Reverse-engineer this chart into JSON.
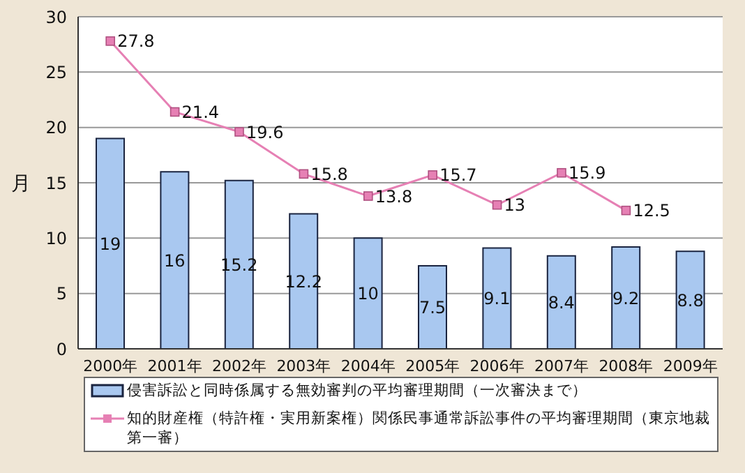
{
  "chart_data": {
    "type": "bar",
    "ylabel": "月",
    "categories": [
      "2000年",
      "2001年",
      "2002年",
      "2003年",
      "2004年",
      "2005年",
      "2006年",
      "2007年",
      "2008年",
      "2009年"
    ],
    "series": [
      {
        "name": "侵害訴訟と同時係属する無効審判の平均審理期間（一次審決まで）",
        "color": "#a9c8f0",
        "values": [
          19,
          16,
          15.2,
          12.2,
          10,
          7.5,
          9.1,
          8.4,
          9.2,
          8.8
        ]
      },
      {
        "name": "知的財産権（特許権・実用新案権）関係民事通常訴訟事件の平均審理期間（東京地裁第一審）",
        "type": "line",
        "color": "#e680b4",
        "values": [
          27.8,
          21.4,
          19.6,
          15.8,
          13.8,
          15.7,
          13,
          15.9,
          12.5,
          null
        ]
      }
    ],
    "ylim": [
      0,
      30
    ],
    "yticks": [
      0,
      5,
      10,
      15,
      20,
      25,
      30
    ],
    "grid": "y",
    "legend": "bottom",
    "data_labels": true,
    "marker": "square"
  }
}
